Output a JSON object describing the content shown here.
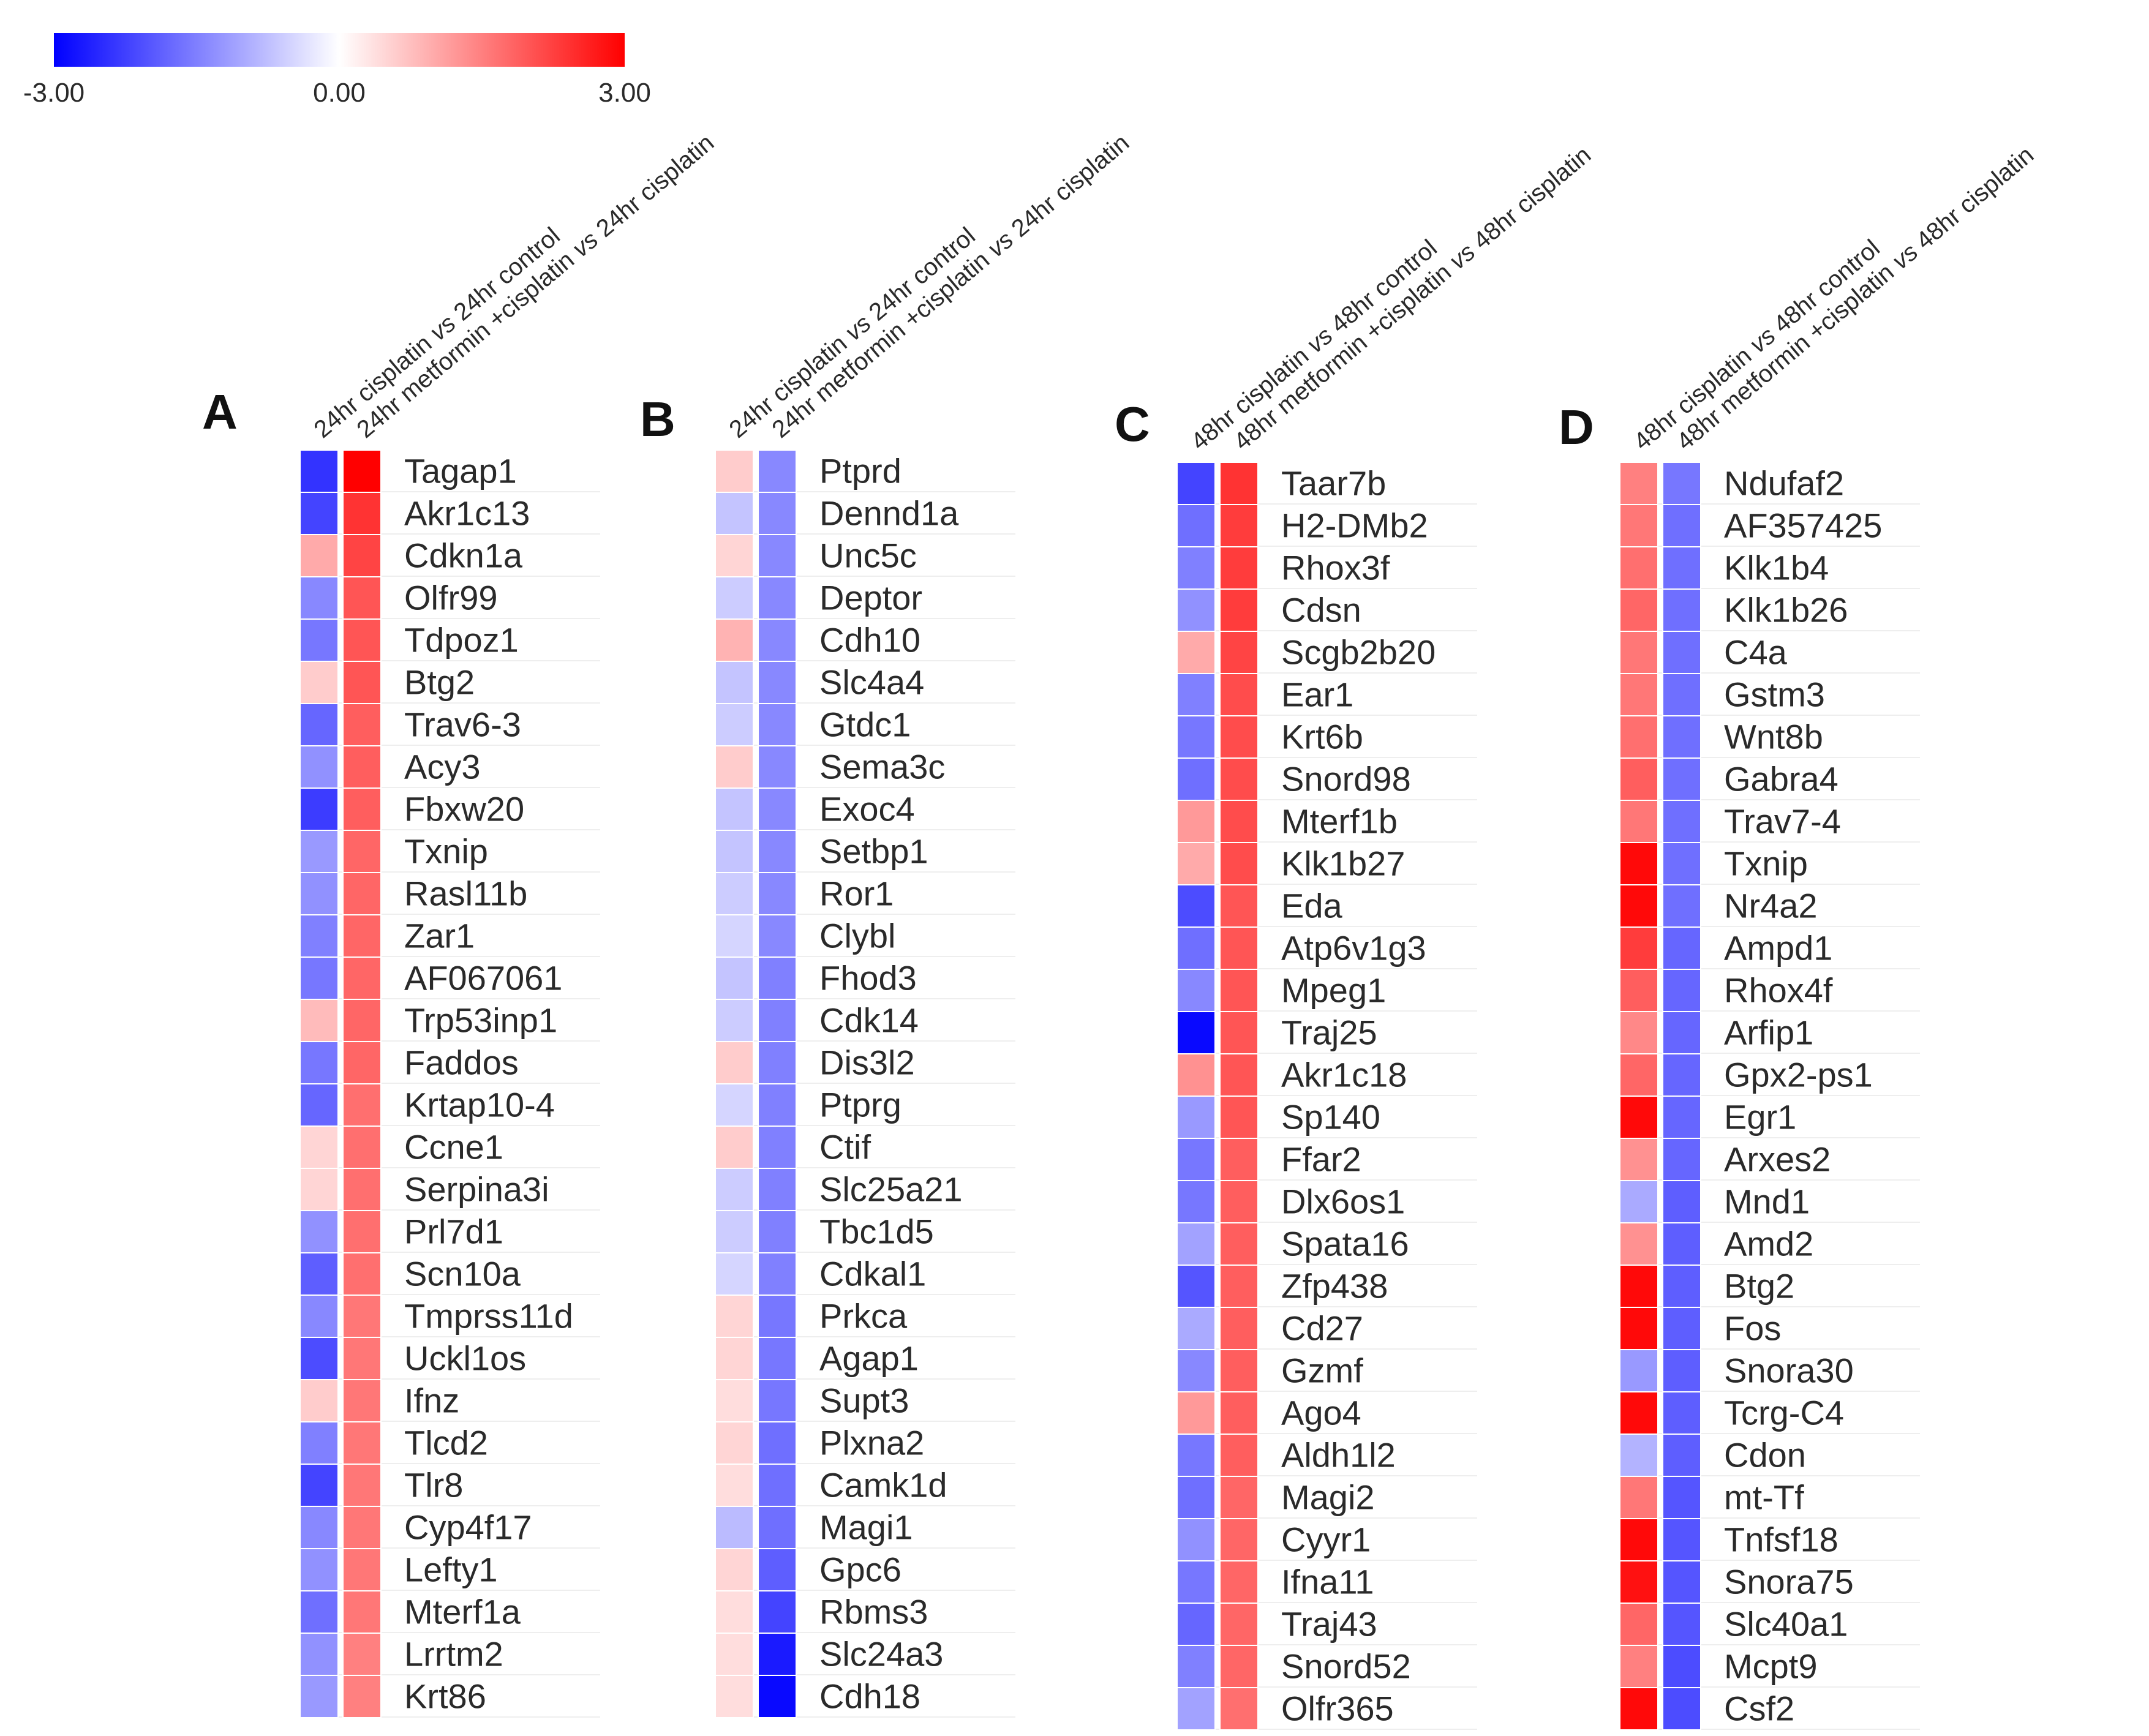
{
  "chart_data": {
    "type": "heatmap",
    "color_scale": {
      "min": -3.0,
      "mid": 0.0,
      "max": 3.0,
      "low_color": "#0000ff",
      "mid_color": "#ffffff",
      "high_color": "#ff0000",
      "tick_labels": [
        "-3.00",
        "0.00",
        "3.00"
      ]
    },
    "panels": [
      {
        "letter": "A",
        "columns": [
          {
            "pre": "24hr cisplatin ",
            "vs": "vs",
            "post": " 24hr control"
          },
          {
            "pre": "24hr metformin +cisplatin ",
            "vs": "vs",
            "post": " 24hr cisplatin"
          }
        ],
        "genes": [
          "Tagap1",
          "Akr1c13",
          "Cdkn1a",
          "Olfr99",
          "Tdpoz1",
          "Btg2",
          "Trav6-3",
          "Acy3",
          "Fbxw20",
          "Txnip",
          "Rasl11b",
          "Zar1",
          "AF067061",
          "Trp53inp1",
          "Faddos",
          "Krtap10-4",
          "Ccne1",
          "Serpina3i",
          "Prl7d1",
          "Scn10a",
          "Tmprss11d",
          "Uckl1os",
          "Ifnz",
          "Tlcd2",
          "Tlr8",
          "Cyp4f17",
          "Lefty1",
          "Mterf1a",
          "Lrrtm2",
          "Krt86"
        ],
        "values": [
          [
            -2.4,
            3.0
          ],
          [
            -2.2,
            2.4
          ],
          [
            1.0,
            2.2
          ],
          [
            -1.4,
            2.0
          ],
          [
            -1.6,
            2.0
          ],
          [
            0.6,
            2.0
          ],
          [
            -1.8,
            1.9
          ],
          [
            -1.3,
            1.9
          ],
          [
            -2.3,
            1.9
          ],
          [
            -1.2,
            1.8
          ],
          [
            -1.3,
            1.8
          ],
          [
            -1.5,
            1.8
          ],
          [
            -1.6,
            1.8
          ],
          [
            0.8,
            1.8
          ],
          [
            -1.6,
            1.8
          ],
          [
            -1.8,
            1.7
          ],
          [
            0.5,
            1.7
          ],
          [
            0.5,
            1.7
          ],
          [
            -1.3,
            1.7
          ],
          [
            -1.9,
            1.7
          ],
          [
            -1.4,
            1.6
          ],
          [
            -2.1,
            1.6
          ],
          [
            0.6,
            1.6
          ],
          [
            -1.5,
            1.6
          ],
          [
            -2.2,
            1.6
          ],
          [
            -1.4,
            1.6
          ],
          [
            -1.3,
            1.6
          ],
          [
            -1.7,
            1.6
          ],
          [
            -1.3,
            1.5
          ],
          [
            -1.2,
            1.5
          ]
        ]
      },
      {
        "letter": "B",
        "columns": [
          {
            "pre": "24hr cisplatin ",
            "vs": "vs",
            "post": " 24hr control"
          },
          {
            "pre": "24hr metformin +cisplatin ",
            "vs": "vs",
            "post": " 24hr cisplatin"
          }
        ],
        "genes": [
          "Ptprd",
          "Dennd1a",
          "Unc5c",
          "Deptor",
          "Cdh10",
          "Slc4a4",
          "Gtdc1",
          "Sema3c",
          "Exoc4",
          "Setbp1",
          "Ror1",
          "Clybl",
          "Fhod3",
          "Cdk14",
          "Dis3l2",
          "Ptprg",
          "Ctif",
          "Slc25a21",
          "Tbc1d5",
          "Cdkal1",
          "Prkca",
          "Agap1",
          "Supt3",
          "Plxna2",
          "Camk1d",
          "Magi1",
          "Gpc6",
          "Rbms3",
          "Slc24a3",
          "Cdh18"
        ],
        "values": [
          [
            0.6,
            -1.4
          ],
          [
            -0.7,
            -1.4
          ],
          [
            0.5,
            -1.4
          ],
          [
            -0.6,
            -1.4
          ],
          [
            0.9,
            -1.4
          ],
          [
            -0.7,
            -1.4
          ],
          [
            -0.6,
            -1.4
          ],
          [
            0.6,
            -1.4
          ],
          [
            -0.7,
            -1.4
          ],
          [
            -0.7,
            -1.4
          ],
          [
            -0.6,
            -1.4
          ],
          [
            -0.5,
            -1.4
          ],
          [
            -0.7,
            -1.5
          ],
          [
            -0.6,
            -1.5
          ],
          [
            0.6,
            -1.5
          ],
          [
            -0.5,
            -1.5
          ],
          [
            0.6,
            -1.5
          ],
          [
            -0.6,
            -1.5
          ],
          [
            -0.6,
            -1.5
          ],
          [
            -0.5,
            -1.5
          ],
          [
            0.5,
            -1.6
          ],
          [
            0.5,
            -1.6
          ],
          [
            0.4,
            -1.6
          ],
          [
            0.5,
            -1.7
          ],
          [
            0.4,
            -1.7
          ],
          [
            -0.8,
            -1.7
          ],
          [
            0.5,
            -1.9
          ],
          [
            0.4,
            -2.2
          ],
          [
            0.4,
            -2.7
          ],
          [
            0.4,
            -2.9
          ]
        ]
      },
      {
        "letter": "C",
        "columns": [
          {
            "pre": "48hr cisplatin ",
            "vs": "vs",
            "post": " 48hr control"
          },
          {
            "pre": "48hr metformin +cisplatin ",
            "vs": "vs",
            "post": " 48hr cisplatin"
          }
        ],
        "genes": [
          "Taar7b",
          "H2-DMb2",
          "Rhox3f",
          "Cdsn",
          "Scgb2b20",
          "Ear1",
          "Krt6b",
          "Snord98",
          "Mterf1b",
          "Klk1b27",
          "Eda",
          "Atp6v1g3",
          "Mpeg1",
          "Traj25",
          "Akr1c18",
          "Sp140",
          "Ffar2",
          "Dlx6os1",
          "Spata16",
          "Zfp438",
          "Cd27",
          "Gzmf",
          "Ago4",
          "Aldh1l2",
          "Magi2",
          "Cyyr1",
          "Ifna11",
          "Traj43",
          "Snord52",
          "Olfr365"
        ],
        "values": [
          [
            -2.2,
            2.4
          ],
          [
            -1.7,
            2.3
          ],
          [
            -1.5,
            2.3
          ],
          [
            -1.3,
            2.3
          ],
          [
            1.0,
            2.2
          ],
          [
            -1.5,
            2.1
          ],
          [
            -1.6,
            2.1
          ],
          [
            -1.7,
            2.1
          ],
          [
            1.2,
            2.1
          ],
          [
            1.0,
            2.1
          ],
          [
            -2.1,
            2.0
          ],
          [
            -1.7,
            2.0
          ],
          [
            -1.4,
            2.0
          ],
          [
            -2.9,
            2.0
          ],
          [
            1.3,
            2.0
          ],
          [
            -1.2,
            2.0
          ],
          [
            -1.6,
            1.9
          ],
          [
            -1.6,
            1.9
          ],
          [
            -1.1,
            1.9
          ],
          [
            -2.0,
            1.9
          ],
          [
            -1.0,
            1.9
          ],
          [
            -1.4,
            1.9
          ],
          [
            1.2,
            1.9
          ],
          [
            -1.6,
            1.9
          ],
          [
            -1.7,
            1.8
          ],
          [
            -1.3,
            1.8
          ],
          [
            -1.6,
            1.8
          ],
          [
            -1.8,
            1.8
          ],
          [
            -1.5,
            1.8
          ],
          [
            -1.1,
            1.7
          ]
        ]
      },
      {
        "letter": "D",
        "columns": [
          {
            "pre": "48hr cisplatin ",
            "vs": "vs",
            "post": " 48hr control"
          },
          {
            "pre": "48hr metformin +cisplatin ",
            "vs": "vs",
            "post": " 48hr cisplatin"
          }
        ],
        "genes": [
          "Ndufaf2",
          "AF357425",
          "Klk1b4",
          "Klk1b26",
          "C4a",
          "Gstm3",
          "Wnt8b",
          "Gabra4",
          "Trav7-4",
          "Txnip",
          "Nr4a2",
          "Ampd1",
          "Rhox4f",
          "Arfip1",
          "Gpx2-ps1",
          "Egr1",
          "Arxes2",
          "Mnd1",
          "Amd2",
          "Btg2",
          "Fos",
          "Snora30",
          "Tcrg-C4",
          "Cdon",
          "mt-Tf",
          "Tnfsf18",
          "Snora75",
          "Slc40a1",
          "Mcpt9",
          "Csf2"
        ],
        "values": [
          [
            1.5,
            -1.6
          ],
          [
            1.6,
            -1.7
          ],
          [
            1.7,
            -1.7
          ],
          [
            1.8,
            -1.7
          ],
          [
            1.6,
            -1.7
          ],
          [
            1.6,
            -1.7
          ],
          [
            1.7,
            -1.7
          ],
          [
            1.9,
            -1.7
          ],
          [
            1.6,
            -1.7
          ],
          [
            2.9,
            -1.7
          ],
          [
            2.9,
            -1.7
          ],
          [
            2.3,
            -1.8
          ],
          [
            1.9,
            -1.8
          ],
          [
            1.4,
            -1.8
          ],
          [
            1.8,
            -1.8
          ],
          [
            2.9,
            -1.8
          ],
          [
            1.3,
            -1.8
          ],
          [
            -1.0,
            -1.9
          ],
          [
            1.3,
            -1.9
          ],
          [
            2.9,
            -1.9
          ],
          [
            2.9,
            -1.9
          ],
          [
            -1.2,
            -1.9
          ],
          [
            2.9,
            -1.9
          ],
          [
            -0.9,
            -1.9
          ],
          [
            1.6,
            -2.0
          ],
          [
            2.9,
            -2.0
          ],
          [
            2.8,
            -2.0
          ],
          [
            1.8,
            -2.0
          ],
          [
            1.5,
            -2.1
          ],
          [
            2.9,
            -2.1
          ]
        ]
      }
    ]
  }
}
